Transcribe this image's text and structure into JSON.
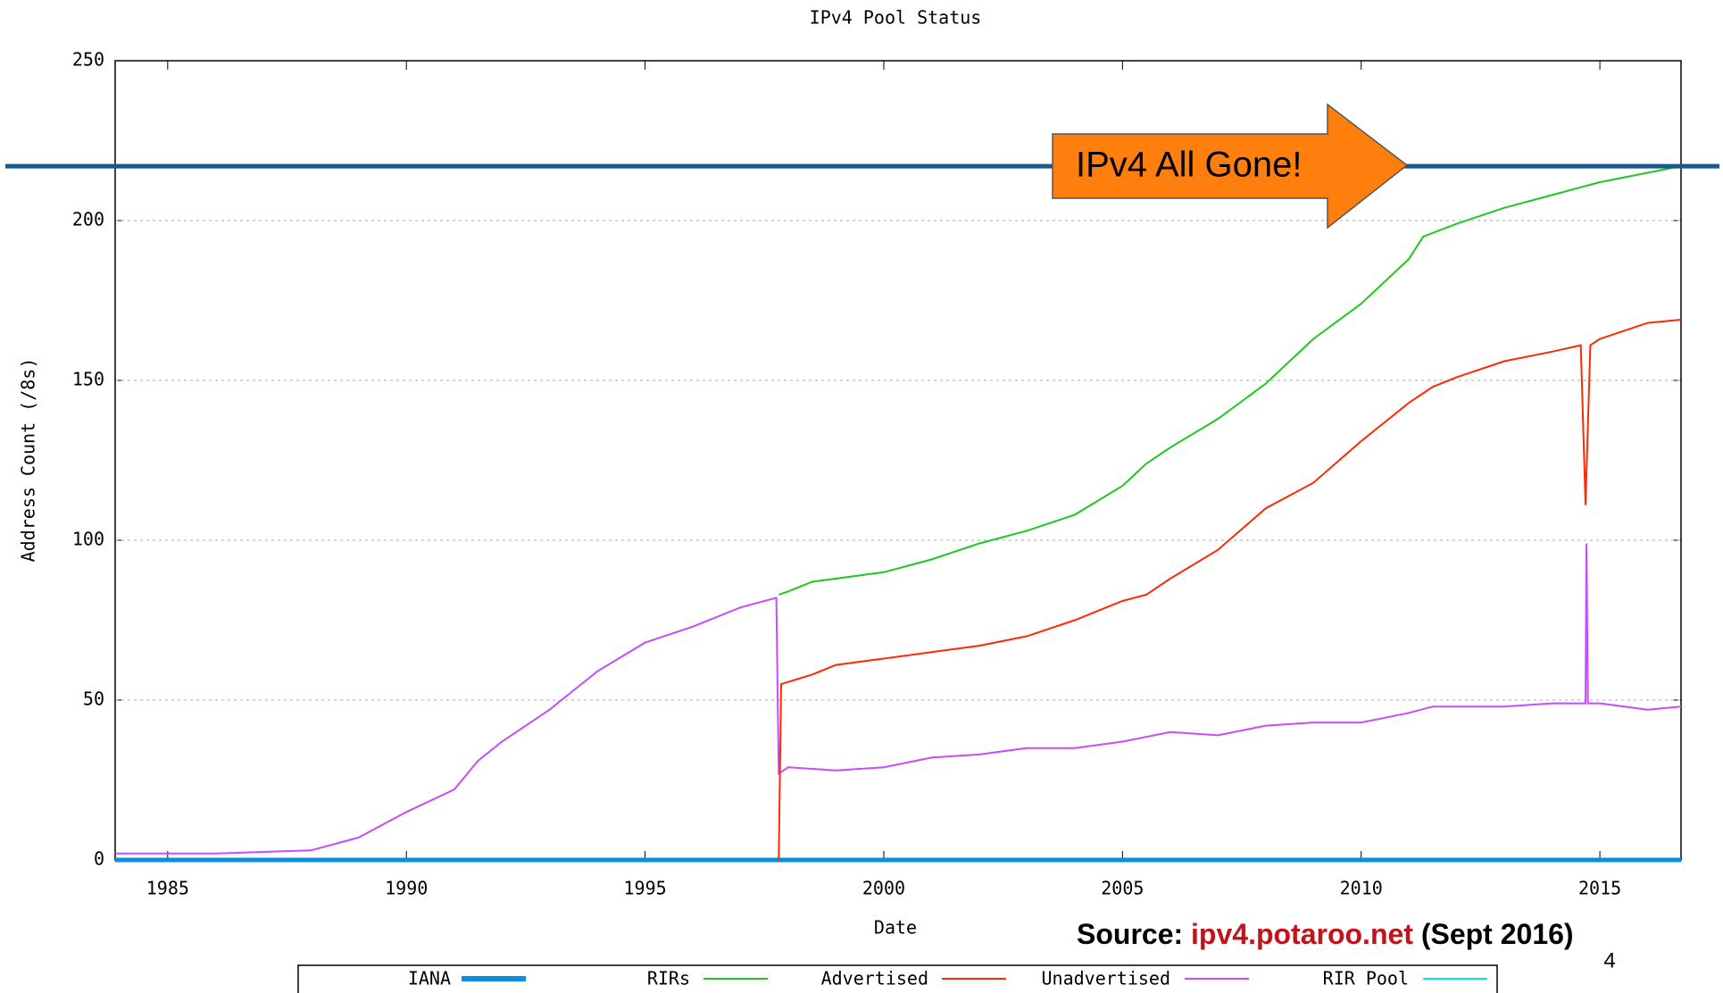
{
  "chart_data": {
    "type": "line",
    "title": "IPv4 Pool Status",
    "x_label": "Date",
    "y_label": "Address Count (/8s)",
    "xlim": [
      1983.9,
      2016.7
    ],
    "xticks": [
      1985,
      1990,
      1995,
      2000,
      2005,
      2010,
      2015
    ],
    "ylim": [
      0,
      250
    ],
    "yticks": [
      0,
      50,
      100,
      150,
      200,
      250
    ],
    "grid": true,
    "series": [
      {
        "name": "IANA",
        "color": "#0a8fdc",
        "x": [
          1983.9,
          2016.7
        ],
        "values": [
          0,
          0
        ]
      },
      {
        "name": "RIRs",
        "color": "#1ec81e",
        "x": [
          1997.8,
          1998,
          1998.5,
          2000,
          2001,
          2002,
          2003,
          2004,
          2005,
          2005.5,
          2006,
          2007,
          2008,
          2009,
          2010,
          2011,
          2011.3,
          2012,
          2013,
          2014,
          2015,
          2016.7
        ],
        "values": [
          83,
          84,
          87,
          90,
          94,
          99,
          103,
          108,
          117,
          124,
          129,
          138,
          149,
          163,
          174,
          188,
          195,
          199,
          204,
          208,
          212,
          217
        ]
      },
      {
        "name": "Advertised",
        "color": "#ff2a00",
        "x": [
          1997.8,
          1997.85,
          1998.5,
          1999,
          2000,
          2001,
          2002,
          2003,
          2004,
          2005,
          2005.5,
          2006,
          2007,
          2008,
          2009,
          2010,
          2011,
          2011.5,
          2012,
          2013,
          2014,
          2014.6,
          2014.7,
          2014.8,
          2015,
          2016,
          2016.7
        ],
        "values": [
          0,
          55,
          58,
          61,
          63,
          65,
          67,
          70,
          75,
          81,
          83,
          88,
          97,
          110,
          118,
          131,
          143,
          148,
          151,
          156,
          159,
          161,
          111,
          161,
          163,
          168,
          169
        ]
      },
      {
        "name": "Unadvertised",
        "color": "#c84bff",
        "x": [
          1983.9,
          1986,
          1988,
          1989,
          1990,
          1991,
          1991.5,
          1992,
          1993,
          1994,
          1995,
          1996,
          1997,
          1997.75,
          1997.8,
          1998,
          1999,
          2000,
          2001,
          2002,
          2003,
          2004,
          2005,
          2006,
          2007,
          2008,
          2009,
          2010,
          2011,
          2011.5,
          2012,
          2013,
          2014,
          2014.7,
          2014.72,
          2014.75,
          2015,
          2016,
          2016.7
        ],
        "values": [
          2,
          2,
          3,
          7,
          15,
          22,
          31,
          37,
          47,
          59,
          68,
          73,
          79,
          82,
          27,
          29,
          28,
          29,
          32,
          33,
          35,
          35,
          37,
          40,
          39,
          42,
          43,
          43,
          46,
          48,
          48,
          48,
          49,
          49,
          99,
          49,
          49,
          47,
          48
        ]
      },
      {
        "name": "RIR Pool",
        "color": "#00e5e5",
        "x": [
          1983.9,
          2016.7
        ],
        "values": [
          0,
          0
        ]
      }
    ],
    "annotation": {
      "text": "IPv4 All Gone!",
      "y": 217,
      "line_color": "#1a5a8a",
      "arrow_color": "#ff7f0e"
    },
    "source": {
      "label": "Source:",
      "link": "ipv4.potaroo.net",
      "date": "(Sept 2016)"
    },
    "page_number": "4"
  }
}
